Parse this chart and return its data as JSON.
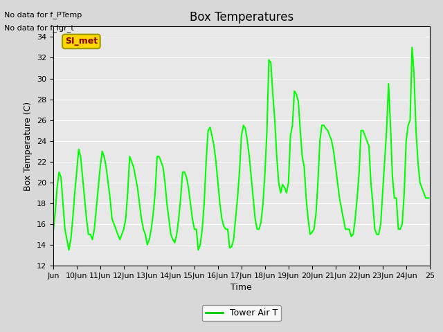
{
  "title": "Box Temperatures",
  "xlabel": "Time",
  "ylabel": "Box Temperature (C)",
  "ylim": [
    12,
    35
  ],
  "yticks": [
    12,
    14,
    16,
    18,
    20,
    22,
    24,
    26,
    28,
    30,
    32,
    34
  ],
  "line_color": "#00FF00",
  "line_width": 1.5,
  "annotations": [
    "No data for f_PTemp",
    "No data for f_lgr_t"
  ],
  "legend_label": "Tower Air T",
  "legend_color": "#00CC00",
  "box_label": "SI_met",
  "x_tick_labels": [
    "Jun",
    "10Jun",
    "11Jun",
    "12Jun",
    "13Jun",
    "14Jun",
    "15Jun",
    "16Jun",
    "17Jun",
    "18Jun",
    "19Jun",
    "20Jun",
    "21Jun",
    "22Jun",
    "23Jun",
    "24Jun",
    "25"
  ],
  "x_tick_positions": [
    0,
    1,
    2,
    3,
    4,
    5,
    6,
    7,
    8,
    9,
    10,
    11,
    12,
    13,
    14,
    15,
    16
  ],
  "data_x": [
    0.0,
    0.083,
    0.167,
    0.25,
    0.333,
    0.417,
    0.5,
    0.583,
    0.667,
    0.75,
    0.833,
    0.917,
    1.0,
    1.083,
    1.167,
    1.25,
    1.333,
    1.417,
    1.5,
    1.583,
    1.667,
    1.75,
    1.833,
    1.917,
    2.0,
    2.083,
    2.167,
    2.25,
    2.333,
    2.417,
    2.5,
    2.583,
    2.667,
    2.75,
    2.833,
    2.917,
    3.0,
    3.083,
    3.167,
    3.25,
    3.333,
    3.417,
    3.5,
    3.583,
    3.667,
    3.75,
    3.833,
    3.917,
    4.0,
    4.083,
    4.167,
    4.25,
    4.333,
    4.417,
    4.5,
    4.583,
    4.667,
    4.75,
    4.833,
    4.917,
    5.0,
    5.083,
    5.167,
    5.25,
    5.333,
    5.417,
    5.5,
    5.583,
    5.667,
    5.75,
    5.833,
    5.917,
    6.0,
    6.083,
    6.167,
    6.25,
    6.333,
    6.417,
    6.5,
    6.583,
    6.667,
    6.75,
    6.833,
    6.917,
    7.0,
    7.083,
    7.167,
    7.25,
    7.333,
    7.417,
    7.5,
    7.583,
    7.667,
    7.75,
    7.833,
    7.917,
    8.0,
    8.083,
    8.167,
    8.25,
    8.333,
    8.417,
    8.5,
    8.583,
    8.667,
    8.75,
    8.833,
    8.917,
    9.0,
    9.083,
    9.167,
    9.25,
    9.333,
    9.417,
    9.5,
    9.583,
    9.667,
    9.75,
    9.833,
    9.917,
    10.0,
    10.083,
    10.167,
    10.25,
    10.333,
    10.417,
    10.5,
    10.583,
    10.667,
    10.75,
    10.833,
    10.917,
    11.0,
    11.083,
    11.167,
    11.25,
    11.333,
    11.417,
    11.5,
    11.583,
    11.667,
    11.75,
    11.833,
    11.917,
    12.0,
    12.083,
    12.167,
    12.25,
    12.333,
    12.417,
    12.5,
    12.583,
    12.667,
    12.75,
    12.833,
    12.917,
    13.0,
    13.083,
    13.167,
    13.25,
    13.333,
    13.417,
    13.5,
    13.583,
    13.667,
    13.75,
    13.833,
    13.917,
    14.0,
    14.083,
    14.167,
    14.25,
    14.333,
    14.417,
    14.5,
    14.583,
    14.667,
    14.75,
    14.833,
    14.917,
    15.0,
    15.083,
    15.167,
    15.25,
    15.333,
    15.417,
    15.5,
    15.583,
    15.667,
    15.75,
    15.833,
    15.917,
    16.0
  ],
  "data_y": [
    15.2,
    17.0,
    19.5,
    21.0,
    20.5,
    18.0,
    15.5,
    14.5,
    13.5,
    14.5,
    16.5,
    19.0,
    21.0,
    23.2,
    22.5,
    20.5,
    18.5,
    16.5,
    15.0,
    15.0,
    14.5,
    15.5,
    17.5,
    19.5,
    21.5,
    23.0,
    22.5,
    21.5,
    20.0,
    18.5,
    16.5,
    16.0,
    15.5,
    15.0,
    14.5,
    15.0,
    15.5,
    16.5,
    19.0,
    22.5,
    22.0,
    21.5,
    20.5,
    19.5,
    18.0,
    16.5,
    15.5,
    15.0,
    14.0,
    14.5,
    15.5,
    17.0,
    19.0,
    22.5,
    22.5,
    22.0,
    21.5,
    20.0,
    18.0,
    16.5,
    15.0,
    14.5,
    14.2,
    15.0,
    16.5,
    18.5,
    21.0,
    21.0,
    20.5,
    19.5,
    18.0,
    16.5,
    15.5,
    15.5,
    13.5,
    14.0,
    15.5,
    18.0,
    22.0,
    25.0,
    25.3,
    24.5,
    23.5,
    22.0,
    20.0,
    18.0,
    16.5,
    15.8,
    15.5,
    15.5,
    13.7,
    13.8,
    14.5,
    16.5,
    18.5,
    21.0,
    24.5,
    25.5,
    25.2,
    24.0,
    22.5,
    20.5,
    18.5,
    16.5,
    15.5,
    15.5,
    16.2,
    18.0,
    21.0,
    25.0,
    31.8,
    31.5,
    28.5,
    26.0,
    22.5,
    20.0,
    19.0,
    19.8,
    19.5,
    19.0,
    20.0,
    24.5,
    25.5,
    28.8,
    28.5,
    27.8,
    25.0,
    22.5,
    21.5,
    18.5,
    16.5,
    15.0,
    15.2,
    15.5,
    17.0,
    20.0,
    24.0,
    25.5,
    25.5,
    25.2,
    25.0,
    24.5,
    24.0,
    23.0,
    21.5,
    20.0,
    18.5,
    17.5,
    16.5,
    15.5,
    15.5,
    15.5,
    14.8,
    15.0,
    16.5,
    18.5,
    21.0,
    25.0,
    25.0,
    24.5,
    24.0,
    23.5,
    20.0,
    18.0,
    15.5,
    15.0,
    15.0,
    16.0,
    19.0,
    22.0,
    25.0,
    29.5,
    25.5,
    20.5,
    18.5,
    18.5,
    15.5,
    15.5,
    16.0,
    19.0,
    24.0,
    25.5,
    26.0,
    33.0,
    30.5,
    25.0,
    22.0,
    20.0,
    19.5,
    19.0,
    18.5,
    18.5,
    18.5
  ]
}
